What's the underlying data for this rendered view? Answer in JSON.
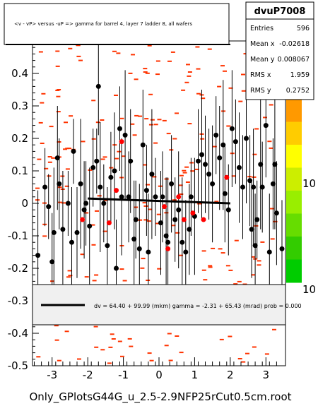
{
  "title_box": {
    "text": "<v - vP>       versus -uP => gamma for barrel 4, layer 7 ladder 8, all wafers"
  },
  "stats": {
    "name": "dvuP7008",
    "rows": [
      {
        "label": "Entries",
        "value": "596"
      },
      {
        "label": "Mean x",
        "value": "-0.02618"
      },
      {
        "label": "Mean y",
        "value": "0.008067"
      },
      {
        "label": "RMS x",
        "value": "1.959"
      },
      {
        "label": "RMS y",
        "value": "0.2752"
      }
    ]
  },
  "fit_box": {
    "text": "dv =   64.40 + 99.99 (mkm) gamma =    -2.31 + 65.43 (mrad) prob = 0.000"
  },
  "footer": {
    "filename": "Only_GPlotsG44G_u_2.5-2.9NFP25rCut0.5cm.root"
  },
  "palette_labels": [
    "10",
    "10"
  ],
  "colors": {
    "black_points": "#000000",
    "red_points": "#ff0000",
    "red_cells": "#ff3300",
    "palette": [
      "#00cc00",
      "#33cc00",
      "#66dd00",
      "#99ee00",
      "#ccee00",
      "#ffff00",
      "#ffcc00",
      "#ff9900"
    ]
  },
  "chart_data": {
    "type": "scatter",
    "title": "<v - vP>       versus -uP => gamma for barrel 4, layer 7 ladder 8, all wafers",
    "xlim": [
      -3.55,
      3.55
    ],
    "ylim": [
      -0.5,
      0.5
    ],
    "xticks": [
      -3,
      -2,
      -1,
      0,
      1,
      2,
      3
    ],
    "yticks": [
      -0.5,
      -0.4,
      -0.3,
      -0.2,
      -0.1,
      0,
      0.1,
      0.2,
      0.3,
      0.4
    ],
    "ytick_labels": [
      "-0.5",
      "-0.4",
      "-0.3",
      "-0.2",
      "-0.1",
      "0",
      "0.1",
      "0.2",
      "0.3",
      "0.4"
    ],
    "xtick_labels": [
      "-3",
      "-2",
      "-1",
      "0",
      "1",
      "2",
      "3"
    ],
    "profile_black": [
      {
        "x": -3.4,
        "y": -0.16,
        "e": 0.2
      },
      {
        "x": -3.2,
        "y": 0.05,
        "e": 0.12
      },
      {
        "x": -3.1,
        "y": -0.01,
        "e": 0.1
      },
      {
        "x": -3.0,
        "y": -0.18,
        "e": 0.15
      },
      {
        "x": -2.95,
        "y": -0.09,
        "e": 0.2
      },
      {
        "x": -2.85,
        "y": 0.14,
        "e": 0.16
      },
      {
        "x": -2.8,
        "y": 0.06,
        "e": 0.14
      },
      {
        "x": -2.7,
        "y": -0.08,
        "e": 0.18
      },
      {
        "x": -2.55,
        "y": 0.0,
        "e": 0.1
      },
      {
        "x": -2.45,
        "y": -0.12,
        "e": 0.17
      },
      {
        "x": -2.4,
        "y": 0.16,
        "e": 0.1
      },
      {
        "x": -2.3,
        "y": -0.09,
        "e": 0.14
      },
      {
        "x": -2.2,
        "y": 0.06,
        "e": 0.2
      },
      {
        "x": -2.1,
        "y": -0.02,
        "e": 0.15
      },
      {
        "x": -2.05,
        "y": 0.0,
        "e": 0.13
      },
      {
        "x": -1.95,
        "y": -0.07,
        "e": 0.18
      },
      {
        "x": -1.85,
        "y": 0.11,
        "e": 0.12
      },
      {
        "x": -1.75,
        "y": 0.13,
        "e": 0.1
      },
      {
        "x": -1.7,
        "y": 0.36,
        "e": 0.15
      },
      {
        "x": -1.65,
        "y": 0.05,
        "e": 0.2
      },
      {
        "x": -1.55,
        "y": 0.0,
        "e": 0.12
      },
      {
        "x": -1.45,
        "y": -0.13,
        "e": 0.18
      },
      {
        "x": -1.35,
        "y": 0.08,
        "e": 0.14
      },
      {
        "x": -1.25,
        "y": 0.1,
        "e": 0.18
      },
      {
        "x": -1.2,
        "y": -0.2,
        "e": 0.15
      },
      {
        "x": -1.1,
        "y": 0.23,
        "e": 0.13
      },
      {
        "x": -1.05,
        "y": 0.02,
        "e": 0.18
      },
      {
        "x": -0.95,
        "y": 0.21,
        "e": 0.2
      },
      {
        "x": -0.85,
        "y": 0.02,
        "e": 0.14
      },
      {
        "x": -0.8,
        "y": 0.13,
        "e": 0.16
      },
      {
        "x": -0.7,
        "y": -0.11,
        "e": 0.18
      },
      {
        "x": -0.65,
        "y": -0.05,
        "e": 0.12
      },
      {
        "x": -0.55,
        "y": -0.14,
        "e": 0.2
      },
      {
        "x": -0.45,
        "y": 0.18,
        "e": 0.17
      },
      {
        "x": -0.35,
        "y": 0.04,
        "e": 0.14
      },
      {
        "x": -0.3,
        "y": -0.15,
        "e": 0.18
      },
      {
        "x": -0.2,
        "y": 0.09,
        "e": 0.2
      },
      {
        "x": -0.1,
        "y": 0.02,
        "e": 0.12
      },
      {
        "x": 0.05,
        "y": -0.06,
        "e": 0.16
      },
      {
        "x": 0.1,
        "y": 0.02,
        "e": 0.14
      },
      {
        "x": 0.2,
        "y": -0.1,
        "e": 0.18
      },
      {
        "x": 0.25,
        "y": -0.12,
        "e": 0.2
      },
      {
        "x": 0.35,
        "y": 0.06,
        "e": 0.15
      },
      {
        "x": 0.45,
        "y": -0.05,
        "e": 0.13
      },
      {
        "x": 0.55,
        "y": -0.02,
        "e": 0.18
      },
      {
        "x": 0.65,
        "y": -0.12,
        "e": 0.2
      },
      {
        "x": 0.75,
        "y": -0.15,
        "e": 0.16
      },
      {
        "x": 0.85,
        "y": -0.08,
        "e": 0.14
      },
      {
        "x": 0.9,
        "y": 0.02,
        "e": 0.12
      },
      {
        "x": 1.0,
        "y": -0.04,
        "e": 0.18
      },
      {
        "x": 1.1,
        "y": 0.13,
        "e": 0.16
      },
      {
        "x": 1.2,
        "y": 0.15,
        "e": 0.2
      },
      {
        "x": 1.3,
        "y": 0.12,
        "e": 0.15
      },
      {
        "x": 1.4,
        "y": 0.09,
        "e": 0.14
      },
      {
        "x": 1.5,
        "y": 0.06,
        "e": 0.18
      },
      {
        "x": 1.6,
        "y": 0.21,
        "e": 0.12
      },
      {
        "x": 1.7,
        "y": 0.14,
        "e": 0.16
      },
      {
        "x": 1.8,
        "y": 0.18,
        "e": 0.2
      },
      {
        "x": 1.85,
        "y": 0.03,
        "e": 0.15
      },
      {
        "x": 1.95,
        "y": -0.02,
        "e": 0.14
      },
      {
        "x": 2.05,
        "y": 0.23,
        "e": 0.18
      },
      {
        "x": 2.15,
        "y": 0.19,
        "e": 0.13
      },
      {
        "x": 2.25,
        "y": 0.11,
        "e": 0.17
      },
      {
        "x": 2.35,
        "y": 0.05,
        "e": 0.16
      },
      {
        "x": 2.45,
        "y": 0.2,
        "e": 0.2
      },
      {
        "x": 2.55,
        "y": 0.07,
        "e": 0.14
      },
      {
        "x": 2.6,
        "y": -0.08,
        "e": 0.15
      },
      {
        "x": 2.65,
        "y": 0.05,
        "e": 0.18
      },
      {
        "x": 2.7,
        "y": -0.13,
        "e": 0.16
      },
      {
        "x": 2.75,
        "y": -0.05,
        "e": 0.12
      },
      {
        "x": 2.85,
        "y": 0.12,
        "e": 0.2
      },
      {
        "x": 2.9,
        "y": 0.05,
        "e": 0.14
      },
      {
        "x": 3.0,
        "y": 0.24,
        "e": 0.16
      },
      {
        "x": 3.1,
        "y": -0.15,
        "e": 0.18
      },
      {
        "x": 3.2,
        "y": 0.06,
        "e": 0.14
      },
      {
        "x": 3.25,
        "y": 0.12,
        "e": 0.2
      },
      {
        "x": 3.3,
        "y": -0.03,
        "e": 0.16
      },
      {
        "x": 3.45,
        "y": -0.14,
        "e": 0.15
      }
    ],
    "profile_red": [
      {
        "x": -2.15,
        "y": -0.05
      },
      {
        "x": -1.4,
        "y": -0.06
      },
      {
        "x": -1.2,
        "y": 0.04
      },
      {
        "x": -1.05,
        "y": 0.19
      },
      {
        "x": 0.15,
        "y": -0.01
      },
      {
        "x": 0.25,
        "y": -0.14
      },
      {
        "x": 0.55,
        "y": 0.02
      },
      {
        "x": 0.7,
        "y": -0.05
      },
      {
        "x": 0.95,
        "y": -0.03
      },
      {
        "x": 1.25,
        "y": -0.05
      },
      {
        "x": 1.9,
        "y": 0.08
      }
    ],
    "fit_line": {
      "x": [
        -2.0,
        2.0
      ],
      "y": [
        0.015,
        0.0
      ]
    }
  }
}
